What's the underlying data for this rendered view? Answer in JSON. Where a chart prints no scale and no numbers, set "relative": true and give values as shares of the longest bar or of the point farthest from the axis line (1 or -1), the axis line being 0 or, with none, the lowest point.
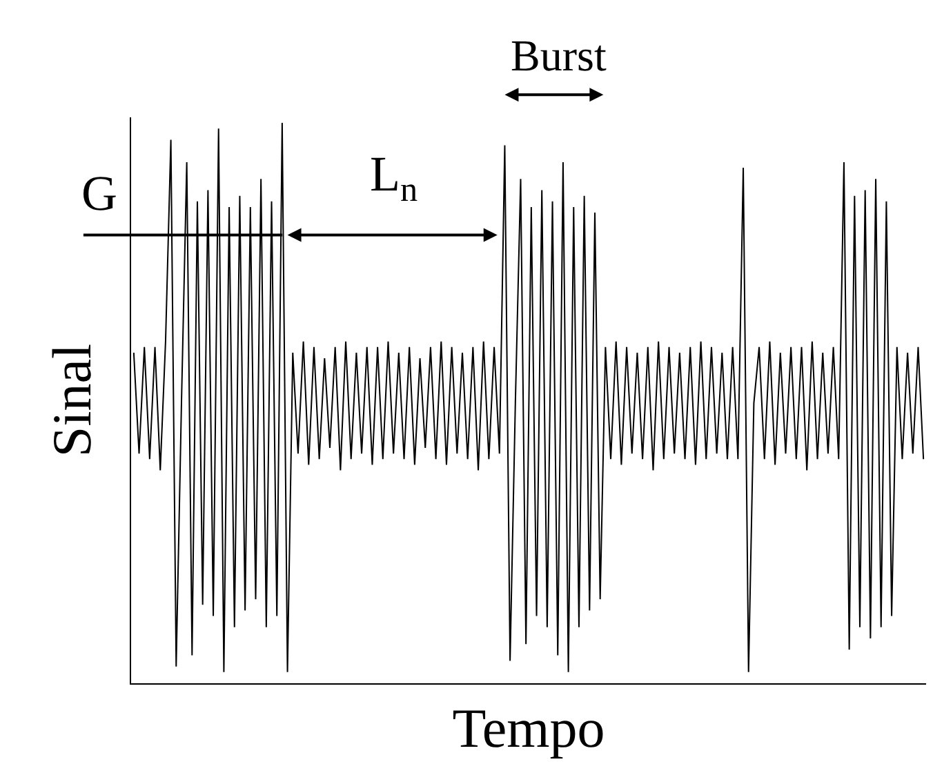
{
  "chart_data": {
    "type": "line",
    "relative": true,
    "xlabel": "Tempo",
    "ylabel": "Sinal",
    "annotations": [
      "G",
      "L$_{n}$",
      "Burst"
    ],
    "categories": [
      null,
      null,
      null,
      null,
      null,
      null,
      null,
      null,
      null,
      null,
      null,
      null,
      null,
      null,
      null,
      null,
      null,
      null,
      null,
      null,
      null,
      null,
      null,
      null,
      null,
      null,
      null,
      null,
      null,
      null,
      null,
      null,
      null,
      null,
      null,
      null,
      null,
      null,
      null,
      null,
      null,
      null,
      null,
      null,
      null,
      null,
      null,
      null,
      null,
      null,
      null,
      null,
      null,
      null,
      null,
      null,
      null,
      null,
      null,
      null,
      null,
      null,
      null,
      null,
      null,
      null,
      null,
      null,
      null,
      null,
      null,
      null,
      null,
      null,
      null,
      null,
      null,
      null,
      null,
      null,
      null,
      null,
      null,
      null,
      null,
      null,
      null,
      null,
      null,
      null,
      null,
      null,
      null,
      null,
      null,
      null,
      null,
      null,
      null,
      null,
      null,
      null,
      null,
      null,
      null,
      null,
      null,
      null,
      null,
      null,
      null,
      null,
      null,
      null,
      null,
      null,
      null,
      null,
      null,
      null,
      null,
      null,
      null,
      null,
      null,
      null,
      null,
      null,
      null,
      null,
      null,
      null,
      null,
      null,
      null,
      null,
      null,
      null,
      null,
      null,
      null,
      null,
      null,
      null,
      null,
      null,
      null,
      null,
      null,
      null
    ],
    "series": [
      {
        "color": "#000000",
        "values": [
          0.59,
          0.41,
          0.6,
          0.4,
          0.6,
          0.38,
          0.61,
          0.97,
          0.03,
          0.5,
          0.93,
          0.05,
          0.86,
          0.14,
          0.88,
          0.12,
          0.99,
          0.02,
          0.85,
          0.1,
          0.87,
          0.13,
          0.85,
          0.15,
          0.9,
          0.1,
          0.86,
          0.12,
          1,
          0.02,
          0.59,
          0.41,
          0.61,
          0.39,
          0.6,
          0.4,
          0.58,
          0.42,
          0.6,
          0.38,
          0.61,
          0.4,
          0.59,
          0.41,
          0.6,
          0.39,
          0.6,
          0.4,
          0.61,
          0.41,
          0.59,
          0.4,
          0.6,
          0.39,
          0.58,
          0.42,
          0.6,
          0.4,
          0.61,
          0.39,
          0.6,
          0.41,
          0.59,
          0.4,
          0.6,
          0.38,
          0.61,
          0.4,
          0.6,
          0.41,
          0.96,
          0.04,
          0.5,
          0.9,
          0.07,
          0.85,
          0.12,
          0.88,
          0.1,
          0.86,
          0.05,
          0.93,
          0.02,
          0.85,
          0.1,
          0.87,
          0.13,
          0.84,
          0.15,
          0.6,
          0.4,
          0.61,
          0.39,
          0.6,
          0.41,
          0.59,
          0.4,
          0.6,
          0.38,
          0.61,
          0.4,
          0.6,
          0.41,
          0.59,
          0.4,
          0.6,
          0.39,
          0.61,
          0.4,
          0.6,
          0.41,
          0.59,
          0.4,
          0.6,
          0.4,
          0.92,
          0.02,
          0.5,
          0.6,
          0.4,
          0.61,
          0.39,
          0.59,
          0.41,
          0.6,
          0.4,
          0.6,
          0.38,
          0.61,
          0.4,
          0.59,
          0.41,
          0.6,
          0.4,
          0.93,
          0.06,
          0.87,
          0.1,
          0.88,
          0.08,
          0.9,
          0.1,
          0.86,
          0.12,
          0.6,
          0.4,
          0.59,
          0.41,
          0.6,
          0.4
        ]
      }
    ]
  }
}
